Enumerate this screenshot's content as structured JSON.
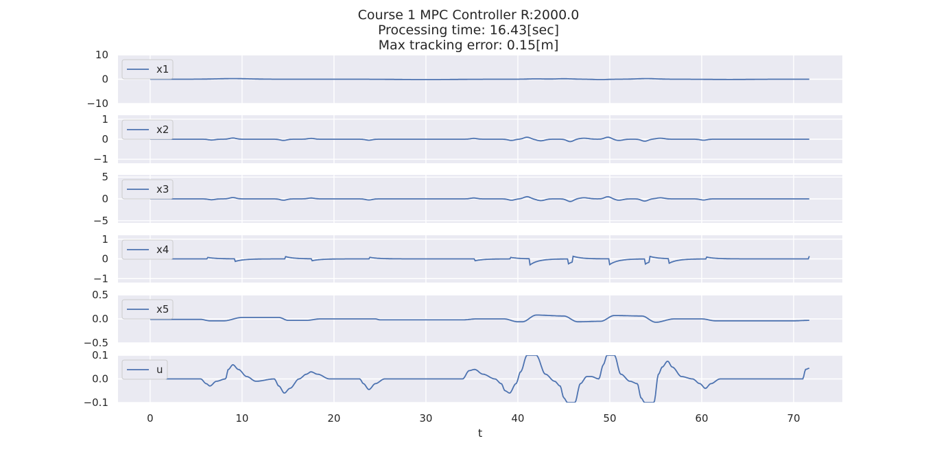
{
  "chart_data": {
    "type": "line",
    "title_lines": [
      "Course 1  MPC Controller   R:2000.0",
      "Processing time: 16.43[sec]",
      "Max tracking error: 0.15[m]"
    ],
    "xlabel": "t",
    "xlim": [
      -3.5,
      75.3
    ],
    "xticks": [
      0,
      10,
      20,
      30,
      40,
      50,
      60,
      70
    ],
    "xtick_labels": [
      "0",
      "10",
      "20",
      "30",
      "40",
      "50",
      "60",
      "70"
    ],
    "grid": true,
    "legend_loc": "upper-left",
    "line_color": "#4c72b0",
    "axes_bg": "#eaeaf2",
    "subplots": [
      {
        "name": "x1",
        "ylim": [
          -10,
          10
        ],
        "yticks": [
          10,
          0,
          -10
        ],
        "ytick_labels": [
          "10",
          "0",
          "−10"
        ],
        "events": [
          [
            9,
            0.25,
            2.5
          ],
          [
            30,
            -0.15,
            4
          ],
          [
            42,
            0.15,
            1.2
          ],
          [
            45,
            0.2,
            1.2
          ],
          [
            49,
            -0.15,
            1
          ],
          [
            54,
            0.25,
            1.5
          ],
          [
            63,
            -0.1,
            3
          ]
        ]
      },
      {
        "name": "x2",
        "ylim": [
          -1.2,
          1.2
        ],
        "yticks": [
          1,
          0,
          -1
        ],
        "ytick_labels": [
          "1",
          "0",
          "−1"
        ],
        "events": [
          [
            6.7,
            -0.04,
            0.5
          ],
          [
            9,
            0.06,
            0.5
          ],
          [
            14.5,
            -0.06,
            0.5
          ],
          [
            17.5,
            0.04,
            0.5
          ],
          [
            23.8,
            -0.05,
            0.5
          ],
          [
            35.2,
            0.04,
            0.5
          ],
          [
            39.3,
            -0.06,
            0.5
          ],
          [
            41,
            0.1,
            0.5
          ],
          [
            42.5,
            -0.08,
            0.6
          ],
          [
            45.7,
            -0.12,
            0.5
          ],
          [
            47.2,
            0.05,
            0.7
          ],
          [
            49.8,
            0.1,
            0.5
          ],
          [
            51,
            -0.06,
            0.6
          ],
          [
            53.8,
            -0.1,
            0.5
          ],
          [
            55.5,
            0.05,
            0.6
          ],
          [
            60.2,
            -0.05,
            0.5
          ]
        ]
      },
      {
        "name": "x3",
        "ylim": [
          -5.5,
          5.5
        ],
        "yticks": [
          5,
          0,
          -5
        ],
        "ytick_labels": [
          "5",
          "0",
          "−5"
        ],
        "events": [
          [
            6.7,
            -0.2,
            0.5
          ],
          [
            9,
            0.3,
            0.5
          ],
          [
            14.5,
            -0.3,
            0.5
          ],
          [
            17.5,
            0.2,
            0.5
          ],
          [
            23.8,
            -0.25,
            0.5
          ],
          [
            35.2,
            0.2,
            0.5
          ],
          [
            39.3,
            -0.3,
            0.5
          ],
          [
            41,
            0.5,
            0.5
          ],
          [
            42.5,
            -0.4,
            0.6
          ],
          [
            45.7,
            -0.6,
            0.5
          ],
          [
            47.2,
            0.25,
            0.7
          ],
          [
            49.8,
            0.5,
            0.5
          ],
          [
            51,
            -0.3,
            0.6
          ],
          [
            53.8,
            -0.5,
            0.5
          ],
          [
            55.5,
            0.25,
            0.6
          ],
          [
            60.2,
            -0.25,
            0.5
          ]
        ]
      },
      {
        "name": "x4",
        "ylim": [
          -1.2,
          1.2
        ],
        "yticks": [
          1,
          0,
          -1
        ],
        "ytick_labels": [
          "1",
          "0",
          "−1"
        ],
        "steps": [
          [
            6.2,
            0.08
          ],
          [
            9.2,
            -0.14
          ],
          [
            14.7,
            0.12
          ],
          [
            17.6,
            -0.1
          ],
          [
            23.9,
            0.08
          ],
          [
            35.3,
            -0.1
          ],
          [
            39.2,
            0.08
          ],
          [
            41.3,
            -0.32
          ],
          [
            45.5,
            -0.25
          ],
          [
            46.0,
            0.28
          ],
          [
            49.9,
            -0.32
          ],
          [
            53.8,
            -0.28
          ],
          [
            54.3,
            0.3
          ],
          [
            56.4,
            -0.25
          ],
          [
            60.5,
            0.1
          ],
          [
            71.7,
            0.14
          ]
        ]
      },
      {
        "name": "x5",
        "ylim": [
          -0.5,
          0.5
        ],
        "yticks": [
          0.5,
          0.0,
          -0.5
        ],
        "ytick_labels": [
          "0.5",
          "0.0",
          "−0.5"
        ],
        "knots": [
          [
            0,
            -0.01
          ],
          [
            5.5,
            -0.01
          ],
          [
            6.5,
            -0.04
          ],
          [
            8,
            -0.04
          ],
          [
            10,
            0.03
          ],
          [
            14,
            0.03
          ],
          [
            15,
            -0.03
          ],
          [
            17,
            -0.03
          ],
          [
            18.5,
            0.0
          ],
          [
            24.5,
            0.0
          ],
          [
            25,
            -0.02
          ],
          [
            34,
            -0.02
          ],
          [
            35.5,
            0.0
          ],
          [
            38.5,
            0.0
          ],
          [
            40,
            -0.06
          ],
          [
            40.5,
            -0.06
          ],
          [
            42,
            0.08
          ],
          [
            45,
            0.06
          ],
          [
            46.5,
            -0.06
          ],
          [
            49,
            -0.05
          ],
          [
            50.5,
            0.07
          ],
          [
            53.5,
            0.06
          ],
          [
            55,
            -0.07
          ],
          [
            57,
            0.0
          ],
          [
            60,
            0.0
          ],
          [
            61.5,
            -0.04
          ],
          [
            70,
            -0.04
          ],
          [
            71.7,
            -0.03
          ]
        ]
      },
      {
        "name": "u",
        "ylim": [
          -0.1,
          0.1
        ],
        "yticks": [
          0.1,
          0.0,
          -0.1
        ],
        "ytick_labels": [
          "0.1",
          "0.0",
          "−0.1"
        ],
        "knots": [
          [
            0,
            0
          ],
          [
            5.5,
            0
          ],
          [
            6.1,
            -0.02
          ],
          [
            6.5,
            -0.03
          ],
          [
            7.2,
            -0.01
          ],
          [
            8.2,
            0
          ],
          [
            8.5,
            0.04
          ],
          [
            9.0,
            0.06
          ],
          [
            9.6,
            0.04
          ],
          [
            10.5,
            0.01
          ],
          [
            11.5,
            -0.01
          ],
          [
            13.5,
            0
          ],
          [
            14.0,
            -0.03
          ],
          [
            14.6,
            -0.06
          ],
          [
            15.2,
            -0.04
          ],
          [
            16.2,
            0
          ],
          [
            17.0,
            0.02
          ],
          [
            17.5,
            0.03
          ],
          [
            18.2,
            0.02
          ],
          [
            19.5,
            0
          ],
          [
            21,
            0
          ],
          [
            22.8,
            0
          ],
          [
            23.2,
            -0.02
          ],
          [
            23.8,
            -0.045
          ],
          [
            24.5,
            -0.02
          ],
          [
            25.5,
            0
          ],
          [
            34,
            0
          ],
          [
            34.7,
            0.035
          ],
          [
            35.3,
            0.04
          ],
          [
            36.2,
            0.02
          ],
          [
            37.5,
            0
          ],
          [
            38.2,
            -0.02
          ],
          [
            38.6,
            -0.05
          ],
          [
            39.1,
            -0.06
          ],
          [
            39.8,
            -0.02
          ],
          [
            40.3,
            0.03
          ],
          [
            41.0,
            0.1
          ],
          [
            42.0,
            0.1
          ],
          [
            43.0,
            0.02
          ],
          [
            44.0,
            -0.01
          ],
          [
            44.6,
            -0.03
          ],
          [
            45.0,
            -0.08
          ],
          [
            45.4,
            -0.1
          ],
          [
            46.2,
            -0.1
          ],
          [
            46.8,
            -0.02
          ],
          [
            47.5,
            0.01
          ],
          [
            48.0,
            0.01
          ],
          [
            48.8,
            0.0
          ],
          [
            49.3,
            0.06
          ],
          [
            49.7,
            0.1
          ],
          [
            50.5,
            0.1
          ],
          [
            51.2,
            0.02
          ],
          [
            52.2,
            -0.01
          ],
          [
            53.0,
            -0.02
          ],
          [
            53.4,
            -0.08
          ],
          [
            53.8,
            -0.1
          ],
          [
            54.8,
            -0.1
          ],
          [
            55.3,
            0.02
          ],
          [
            55.7,
            0.05
          ],
          [
            56.3,
            0.075
          ],
          [
            56.8,
            0.05
          ],
          [
            57.8,
            0.01
          ],
          [
            59.0,
            0
          ],
          [
            59.8,
            -0.02
          ],
          [
            60.4,
            -0.04
          ],
          [
            61.0,
            -0.02
          ],
          [
            62.0,
            0
          ],
          [
            71.0,
            0
          ],
          [
            71.3,
            0.04
          ],
          [
            71.7,
            0.045
          ]
        ]
      }
    ]
  }
}
